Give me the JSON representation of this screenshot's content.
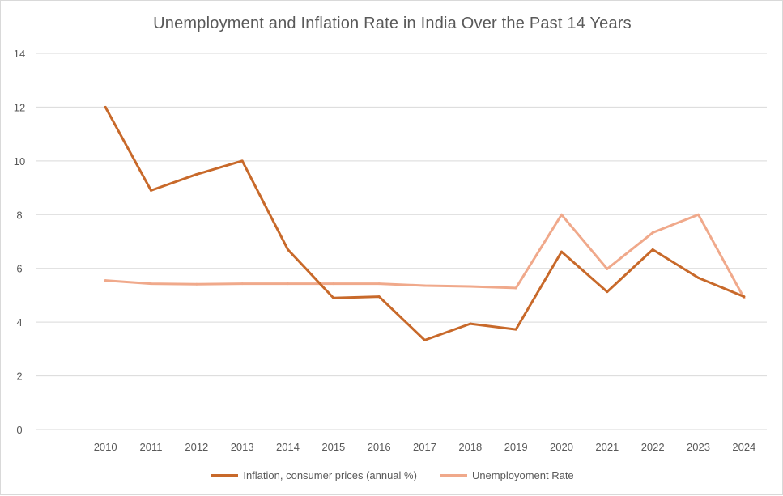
{
  "chart_data": {
    "type": "line",
    "title": "Unemployment and Inflation Rate in India Over the Past 14 Years",
    "xlabel": "",
    "ylabel": "",
    "categories": [
      "2010",
      "2011",
      "2012",
      "2013",
      "2014",
      "2015",
      "2016",
      "2017",
      "2018",
      "2019",
      "2020",
      "2021",
      "2022",
      "2023",
      "2024"
    ],
    "ylim": [
      0,
      14
    ],
    "yticks": [
      0,
      2,
      4,
      6,
      8,
      10,
      12,
      14
    ],
    "grid": true,
    "legend_position": "bottom",
    "series": [
      {
        "name": "Inflation, consumer prices (annual %)",
        "color": "#c8692a",
        "values": [
          12.0,
          8.9,
          9.5,
          10.0,
          6.7,
          4.9,
          4.95,
          3.33,
          3.94,
          3.73,
          6.62,
          5.13,
          6.7,
          5.65,
          4.95
        ]
      },
      {
        "name": "Unemployoment Rate",
        "color": "#f0a98b",
        "values": [
          5.55,
          5.43,
          5.41,
          5.43,
          5.43,
          5.43,
          5.43,
          5.36,
          5.33,
          5.27,
          8.0,
          5.98,
          7.33,
          8.0,
          4.9
        ]
      }
    ]
  }
}
